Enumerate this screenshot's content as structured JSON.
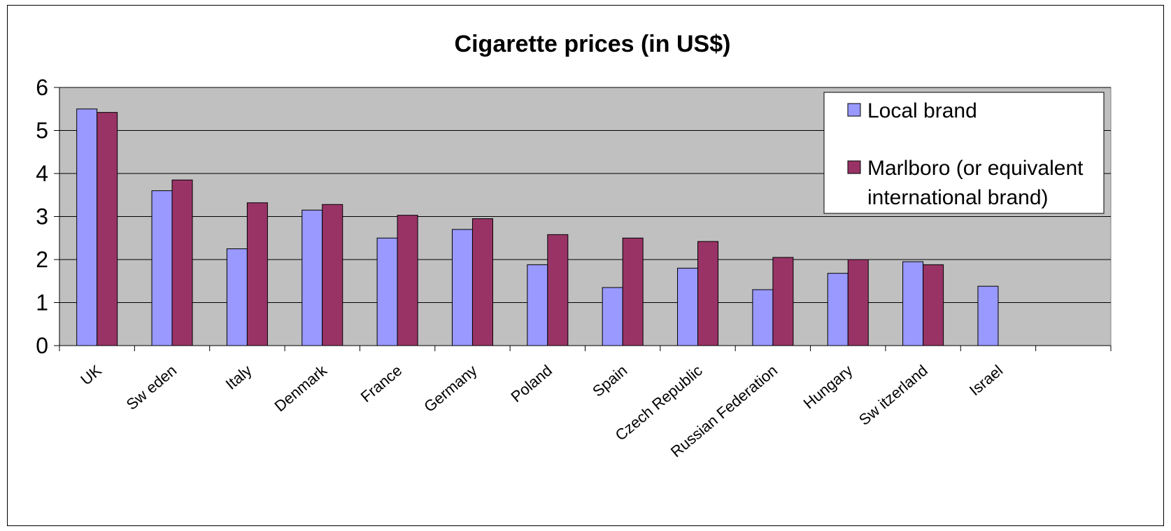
{
  "chart_data": {
    "type": "bar",
    "title": "Cigarette prices (in US$)",
    "xlabel": "",
    "ylabel": "",
    "ylim": [
      0,
      6
    ],
    "yticks": [
      "0",
      "1",
      "2",
      "3",
      "4",
      "5",
      "6"
    ],
    "grid": true,
    "legend_position": "top-right",
    "categories": [
      "UK",
      "Sw eden",
      "Italy",
      "Denmark",
      "France",
      "Germany",
      "Poland",
      "Spain",
      "Czech Republic",
      "Russian Federation",
      "Hungary",
      "Sw itzerland",
      "Israel",
      ""
    ],
    "series": [
      {
        "name": "Local brand",
        "color": "#9999ff",
        "values": [
          5.5,
          3.6,
          2.25,
          3.15,
          2.5,
          2.7,
          1.88,
          1.35,
          1.8,
          1.3,
          1.68,
          1.95,
          1.38,
          null
        ]
      },
      {
        "name": "Marlboro (or equivalent international brand)",
        "color": "#993366",
        "values": [
          5.42,
          3.85,
          3.32,
          3.28,
          3.03,
          2.95,
          2.58,
          2.5,
          2.42,
          2.05,
          2.0,
          1.88,
          null,
          null
        ]
      }
    ],
    "legend": {
      "local": "Local brand",
      "marlboro_line1": "Marlboro (or equivalent",
      "marlboro_line2": "international brand)"
    },
    "plot_background": "#c0c0c0"
  }
}
